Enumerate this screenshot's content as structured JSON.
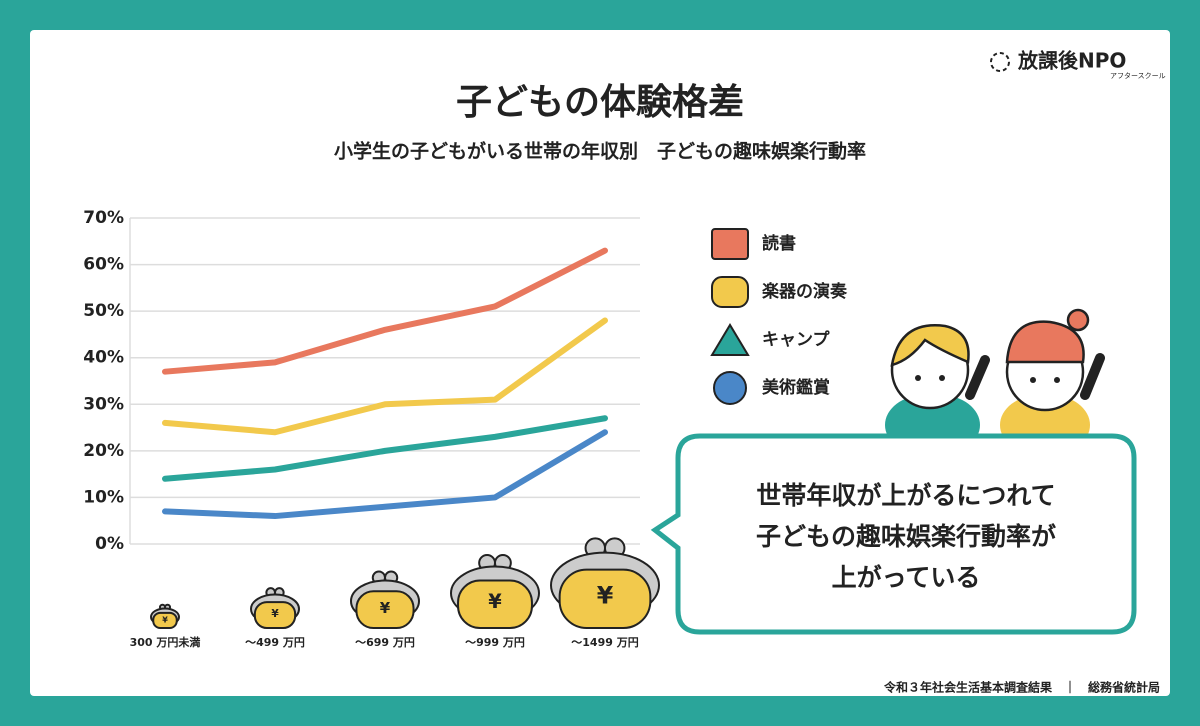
{
  "chart_data": {
    "type": "line",
    "title": "子どもの体験格差",
    "subtitle": "小学生の子どもがいる世帯の年収別　子どもの趣味娯楽行動率",
    "categories": [
      "300 万円未満",
      "〜499 万円",
      "〜699 万円",
      "〜999 万円",
      "〜1499 万円"
    ],
    "series": [
      {
        "name": "読書",
        "color": "#e8785e",
        "values": [
          37,
          39,
          46,
          51,
          63
        ]
      },
      {
        "name": "楽器の演奏",
        "color": "#f2c94c",
        "values": [
          26,
          24,
          30,
          31,
          48
        ]
      },
      {
        "name": "キャンプ",
        "color": "#2aa59a",
        "values": [
          14,
          16,
          20,
          23,
          27
        ]
      },
      {
        "name": "美術鑑賞",
        "color": "#4a87c8",
        "values": [
          7,
          6,
          8,
          10,
          24
        ]
      }
    ],
    "ylim": [
      0,
      70
    ],
    "yticks": [
      {
        "value": 0,
        "label": "0%"
      },
      {
        "value": 10,
        "label": "10%"
      },
      {
        "value": 20,
        "label": "20%"
      },
      {
        "value": 30,
        "label": "30%"
      },
      {
        "value": 40,
        "label": "40%"
      },
      {
        "value": 50,
        "label": "50%"
      },
      {
        "value": 60,
        "label": "60%"
      },
      {
        "value": 70,
        "label": "70%"
      }
    ],
    "grid": true,
    "legend": "right",
    "purse_symbol": "¥",
    "annotations": [
      "世帯年収が上がるにつれて",
      "子どもの趣味娯楽行動率が",
      "上がっている"
    ],
    "source": "令和３年社会生活基本調査結果　｜　総務省統計局"
  },
  "brand": {
    "name": "放課後NPO",
    "tagline": "アフタースクール"
  }
}
